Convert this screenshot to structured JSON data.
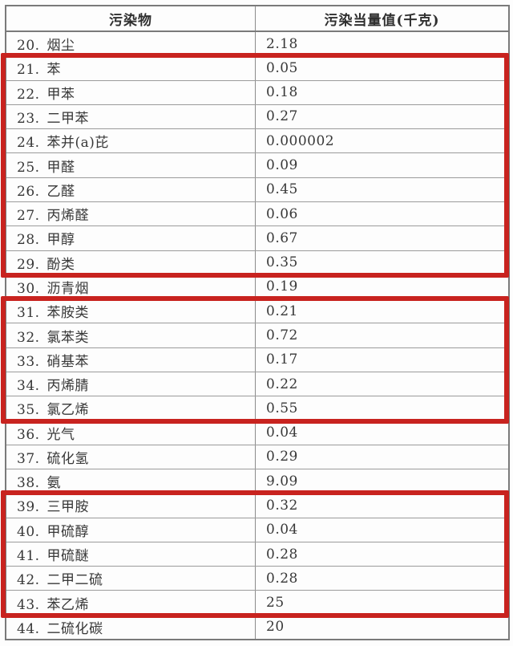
{
  "table": {
    "headers": [
      "污染物",
      "污染当量值(千克)"
    ],
    "rows": [
      {
        "num": "20",
        "name": "烟尘",
        "value": "2.18",
        "highlighted": false
      },
      {
        "num": "21",
        "name": "苯",
        "value": "0.05",
        "highlighted": true
      },
      {
        "num": "22",
        "name": "甲苯",
        "value": "0.18",
        "highlighted": true
      },
      {
        "num": "23",
        "name": "二甲苯",
        "value": "0.27",
        "highlighted": true
      },
      {
        "num": "24",
        "name": "苯并(a)芘",
        "value": "0.000002",
        "highlighted": true
      },
      {
        "num": "25",
        "name": "甲醛",
        "value": "0.09",
        "highlighted": true
      },
      {
        "num": "26",
        "name": "乙醛",
        "value": "0.45",
        "highlighted": true
      },
      {
        "num": "27",
        "name": "丙烯醛",
        "value": "0.06",
        "highlighted": true
      },
      {
        "num": "28",
        "name": "甲醇",
        "value": "0.67",
        "highlighted": true
      },
      {
        "num": "29",
        "name": "酚类",
        "value": "0.35",
        "highlighted": true
      },
      {
        "num": "30",
        "name": "沥青烟",
        "value": "0.19",
        "highlighted": false
      },
      {
        "num": "31",
        "name": "苯胺类",
        "value": "0.21",
        "highlighted": true
      },
      {
        "num": "32",
        "name": "氯苯类",
        "value": "0.72",
        "highlighted": true
      },
      {
        "num": "33",
        "name": "硝基苯",
        "value": "0.17",
        "highlighted": true
      },
      {
        "num": "34",
        "name": "丙烯腈",
        "value": "0.22",
        "highlighted": true
      },
      {
        "num": "35",
        "name": "氯乙烯",
        "value": "0.55",
        "highlighted": true
      },
      {
        "num": "36",
        "name": "光气",
        "value": "0.04",
        "highlighted": false
      },
      {
        "num": "37",
        "name": "硫化氢",
        "value": "0.29",
        "highlighted": false
      },
      {
        "num": "38",
        "name": "氨",
        "value": "9.09",
        "highlighted": false
      },
      {
        "num": "39",
        "name": "三甲胺",
        "value": "0.32",
        "highlighted": true
      },
      {
        "num": "40",
        "name": "甲硫醇",
        "value": "0.04",
        "highlighted": true
      },
      {
        "num": "41",
        "name": "甲硫醚",
        "value": "0.28",
        "highlighted": true
      },
      {
        "num": "42",
        "name": "二甲二硫",
        "value": "0.28",
        "highlighted": true
      },
      {
        "num": "43",
        "name": "苯乙烯",
        "value": "25",
        "highlighted": true
      },
      {
        "num": "44",
        "name": "二硫化碳",
        "value": "20",
        "highlighted": false
      }
    ]
  },
  "highlight_boxes": [
    {
      "start_row": "21",
      "end_row": "29"
    },
    {
      "start_row": "31",
      "end_row": "35"
    },
    {
      "start_row": "39",
      "end_row": "43"
    }
  ],
  "colors": {
    "highlight_red": "#c8231f",
    "outer_border": "#7a7a7a",
    "row_line": "#9b9b9b",
    "text": "#383838"
  }
}
